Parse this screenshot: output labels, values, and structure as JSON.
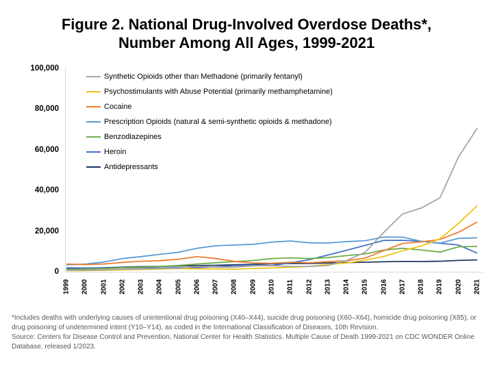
{
  "title": {
    "line1": "Figure 2. National Drug-Involved Overdose Deaths*,",
    "line2": "Number Among All Ages, 1999-2021"
  },
  "footnote": {
    "note": "*Includes deaths with underlying causes of unintentional drug poisoning (X40–X44), suicide drug poisoning (X60–X64), homicide drug poisoning (X85), or drug poisoning of undetermined intent (Y10–Y14), as coded in the International Classification of Diseases, 10th Revision.",
    "source": "Source: Centers for Disease Control and Prevention, National Center for Health Statistics. Multiple Cause of Death 1999-2021 on CDC WONDER Online Database, released 1/2023."
  },
  "chart_data": {
    "type": "line",
    "title": "Figure 2. National Drug-Involved Overdose Deaths*, Number Among All Ages, 1999-2021",
    "xlabel": "",
    "ylabel": "",
    "ylim": [
      0,
      100000
    ],
    "y_ticks": [
      0,
      20000,
      40000,
      60000,
      80000,
      100000
    ],
    "grid": false,
    "legend_position": "top-left-inside",
    "x": [
      1999,
      2000,
      2001,
      2002,
      2003,
      2004,
      2005,
      2006,
      2007,
      2008,
      2009,
      2010,
      2011,
      2012,
      2013,
      2014,
      2015,
      2016,
      2017,
      2018,
      2019,
      2020,
      2021
    ],
    "series": [
      {
        "name": "Synthetic Opioids other than Methadone (primarily fentanyl)",
        "color": "#a6a6a6",
        "values": [
          730,
          782,
          957,
          1295,
          1400,
          1664,
          1742,
          2707,
          2213,
          2306,
          2946,
          3007,
          2666,
          2628,
          3105,
          5544,
          9580,
          19413,
          28466,
          31335,
          36359,
          56516,
          70601
        ]
      },
      {
        "name": "Psychostimulants with Abuse Potential (primarily methamphetamine)",
        "color": "#efc319",
        "values": [
          547,
          578,
          705,
          941,
          1149,
          1305,
          1608,
          1462,
          1378,
          1302,
          1632,
          1854,
          2266,
          2635,
          3627,
          4298,
          5716,
          7542,
          10333,
          12676,
          16167,
          23837,
          32537
        ]
      },
      {
        "name": "Cocaine",
        "color": "#ed7d31",
        "values": [
          3822,
          3544,
          3833,
          4599,
          5199,
          5443,
          6208,
          7448,
          6512,
          5129,
          4350,
          4183,
          4681,
          4404,
          4944,
          5415,
          6784,
          10375,
          13942,
          14666,
          15883,
          19447,
          24486
        ]
      },
      {
        "name": "Prescription Opioids (natural & semi-synthetic opioids & methadone)",
        "color": "#5b9bd5",
        "values": [
          3442,
          3785,
          4770,
          6483,
          7461,
          8577,
          9612,
          11589,
          12796,
          13149,
          13523,
          14583,
          15140,
          14240,
          14145,
          14838,
          15281,
          17087,
          17029,
          14975,
          14139,
          16416,
          16706
        ]
      },
      {
        "name": "Benzodiazepines",
        "color": "#70ad47",
        "values": [
          1135,
          1298,
          1594,
          2022,
          2248,
          2627,
          3084,
          3805,
          4441,
          5010,
          5567,
          6497,
          6872,
          6524,
          6973,
          7945,
          8791,
          10684,
          11537,
          10724,
          9711,
          12290,
          12499
        ]
      },
      {
        "name": "Heroin",
        "color": "#4472c4",
        "values": [
          1960,
          1842,
          1779,
          2089,
          2080,
          1878,
          2009,
          2088,
          2399,
          3041,
          3278,
          3036,
          4397,
          5925,
          8257,
          10574,
          12989,
          15469,
          15482,
          14996,
          14019,
          13165,
          9173
        ]
      },
      {
        "name": "Antidepressants",
        "color": "#1f3864",
        "values": [
          1749,
          1798,
          1997,
          2243,
          2512,
          2659,
          2861,
          3068,
          3194,
          3447,
          3673,
          3889,
          4077,
          4095,
          4349,
          4540,
          4721,
          4917,
          5088,
          5064,
          5175,
          5597,
          5859
        ]
      }
    ]
  }
}
